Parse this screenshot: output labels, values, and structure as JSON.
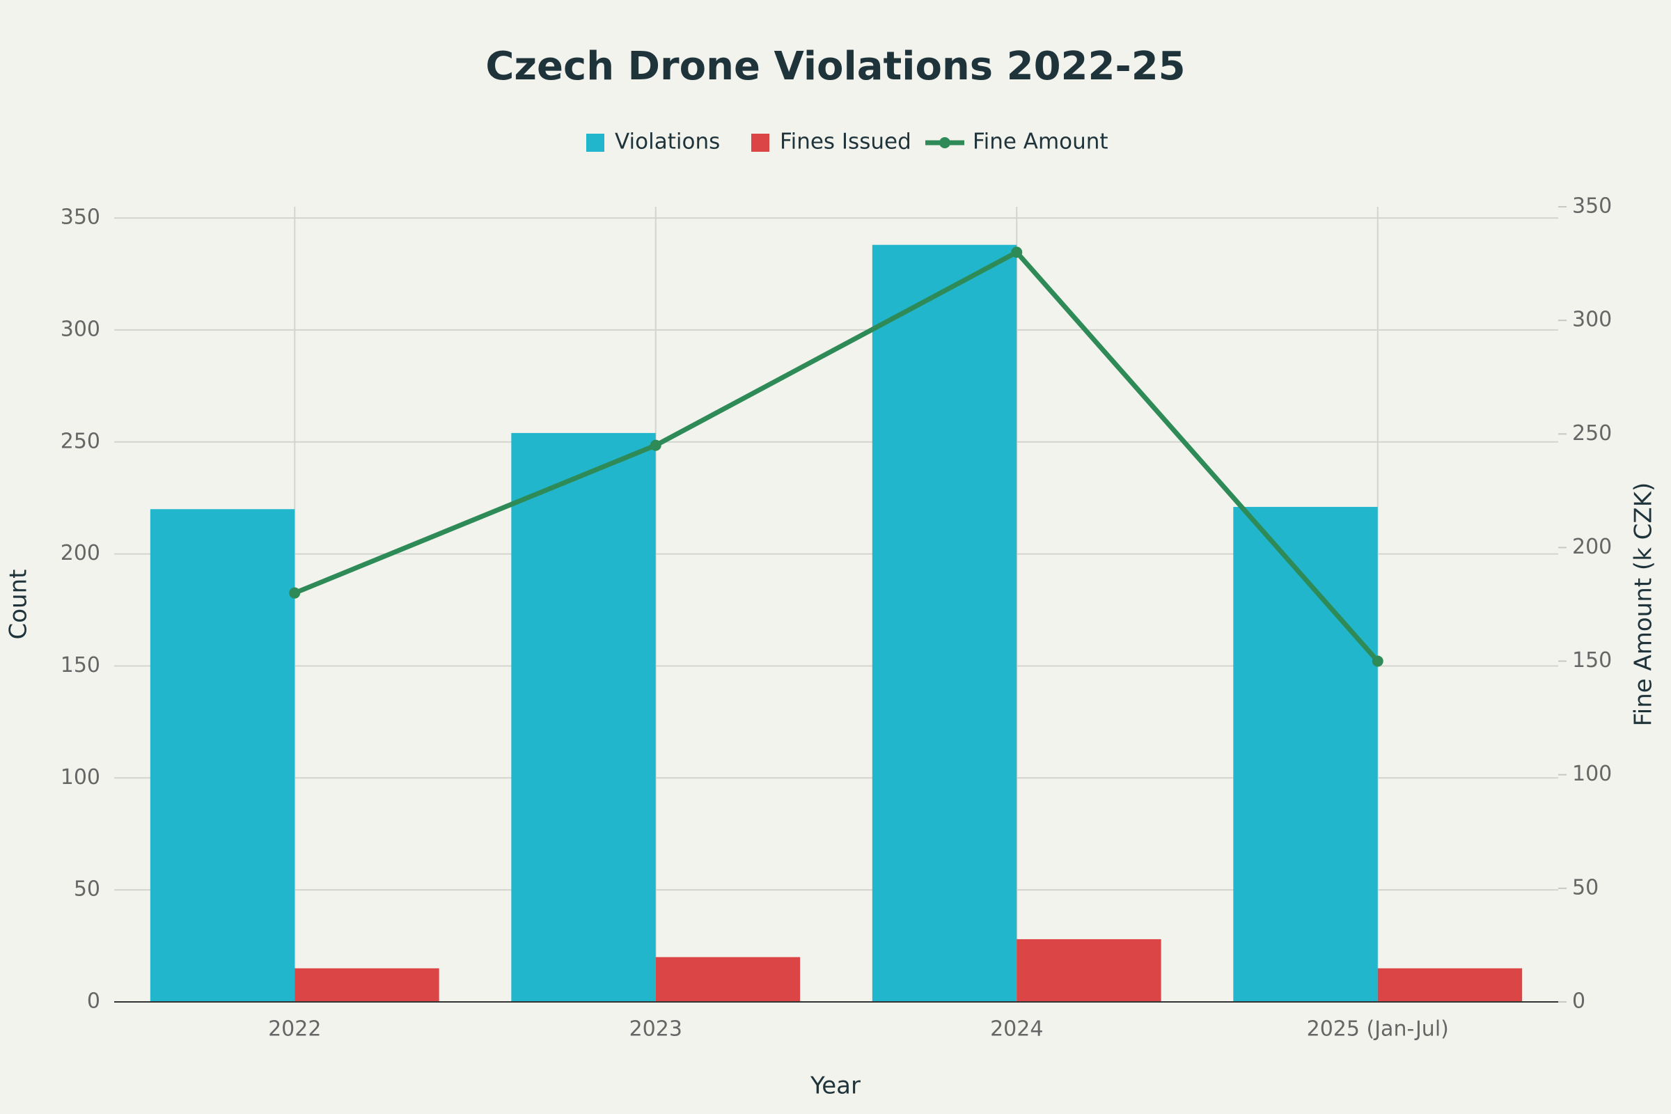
{
  "chart_data": {
    "type": "bar_line",
    "title": "Czech Drone Violations 2022-25",
    "x_label": "Year",
    "y_label": "Count",
    "y2_label": "Fine Amount (k CZK)",
    "categories": [
      "2022",
      "2023",
      "2024",
      "2025 (Jan-Jul)"
    ],
    "series": [
      {
        "name": "Violations",
        "type": "bar",
        "color": "#21b6cc",
        "values": [
          220,
          254,
          338,
          221
        ]
      },
      {
        "name": "Fines Issued",
        "type": "bar",
        "color": "#db4545",
        "values": [
          15,
          20,
          28,
          15
        ]
      },
      {
        "name": "Fine Amount",
        "type": "line",
        "axis": "y2",
        "color": "#2e8b57",
        "values": [
          180,
          245,
          330,
          150
        ]
      }
    ],
    "ylim": [
      0,
      355
    ],
    "yticks": [
      0,
      50,
      100,
      150,
      200,
      250,
      300,
      350
    ],
    "y2lim": [
      0,
      350
    ],
    "y2ticks": [
      0,
      50,
      100,
      150,
      200,
      250,
      300,
      350
    ],
    "grid": true
  }
}
